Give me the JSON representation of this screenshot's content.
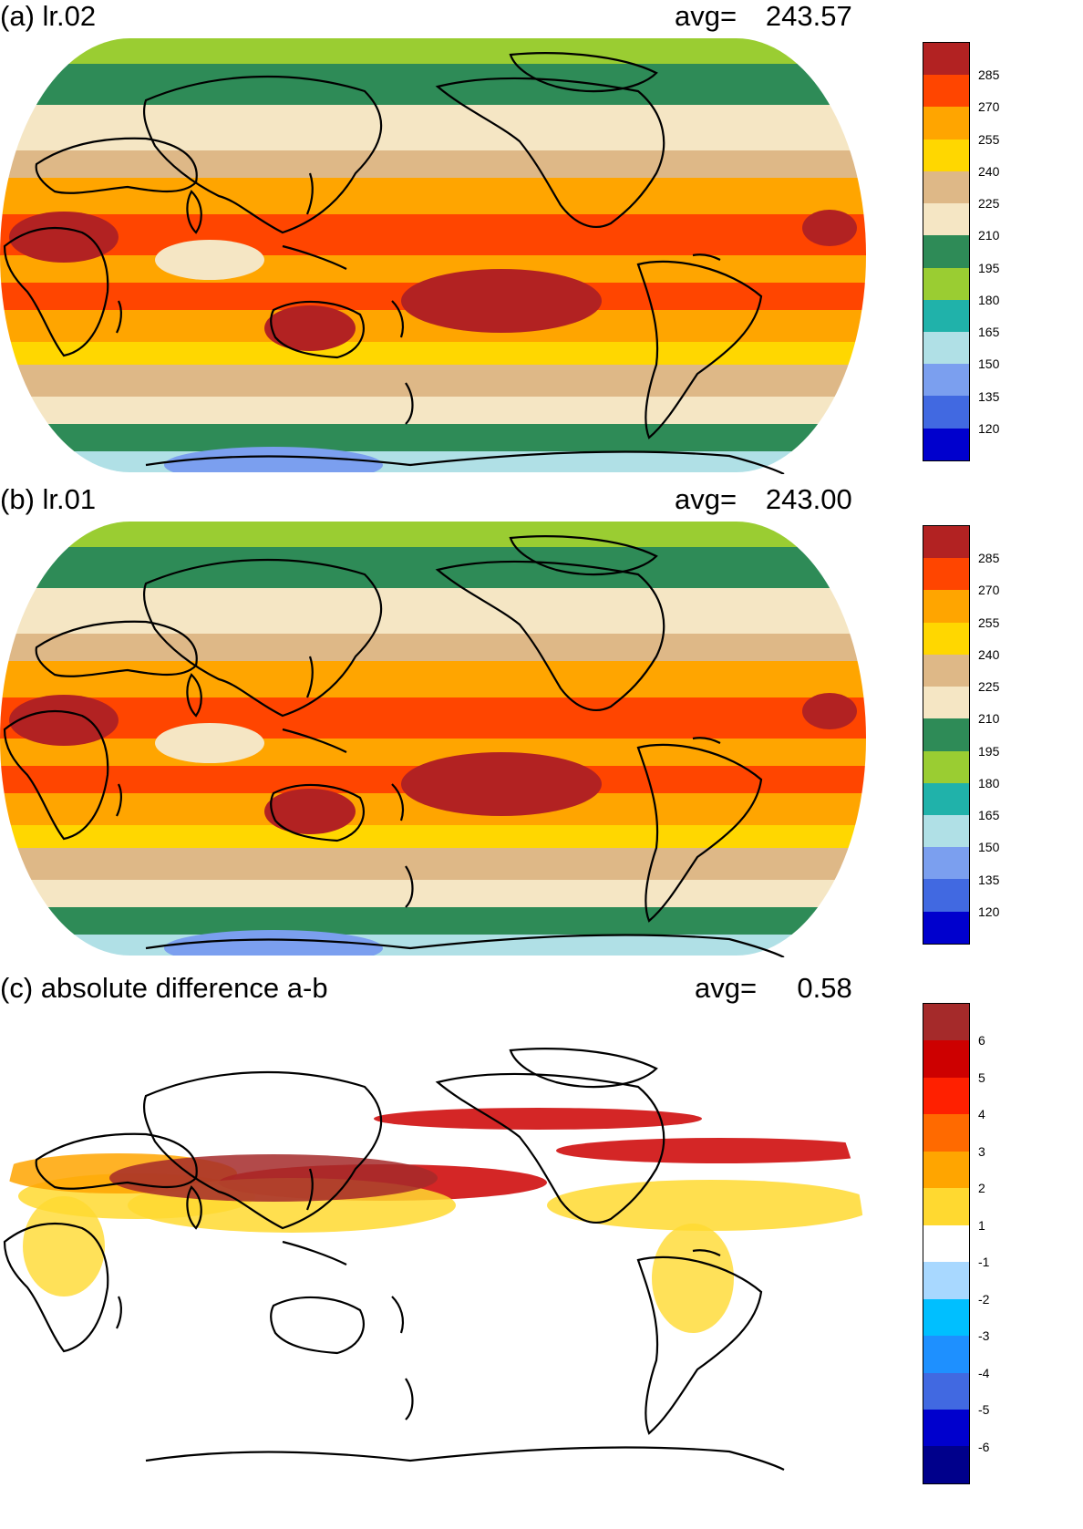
{
  "panels": [
    {
      "title": "(a) lr.02",
      "avg_label": "avg=",
      "avg_value": "243.57",
      "colorbar": {
        "labels": [
          "285",
          "270",
          "255",
          "240",
          "225",
          "210",
          "195",
          "180",
          "165",
          "150",
          "135",
          "120"
        ],
        "colors": [
          "#b22222",
          "#ff4500",
          "#ffa500",
          "#ffd700",
          "#deb887",
          "#f5e6c4",
          "#2e8b57",
          "#9acd32",
          "#20b2aa",
          "#b0e0e6",
          "#7b9fef",
          "#4169e1",
          "#0000cd"
        ]
      }
    },
    {
      "title": "(b) lr.01",
      "avg_label": "avg=",
      "avg_value": "243.00",
      "colorbar": {
        "labels": [
          "285",
          "270",
          "255",
          "240",
          "225",
          "210",
          "195",
          "180",
          "165",
          "150",
          "135",
          "120"
        ],
        "colors": [
          "#b22222",
          "#ff4500",
          "#ffa500",
          "#ffd700",
          "#deb887",
          "#f5e6c4",
          "#2e8b57",
          "#9acd32",
          "#20b2aa",
          "#b0e0e6",
          "#7b9fef",
          "#4169e1",
          "#0000cd"
        ]
      }
    },
    {
      "title": "(c) absolute difference a-b",
      "avg_label": "avg=",
      "avg_value": "0.58",
      "colorbar": {
        "labels": [
          "6",
          "5",
          "4",
          "3",
          "2",
          "1",
          "-1",
          "-2",
          "-3",
          "-4",
          "-5",
          "-6"
        ],
        "colors": [
          "#a52a2a",
          "#cd0000",
          "#ff2000",
          "#ff6a00",
          "#ffa500",
          "#ffd930",
          "#ffffff",
          "#a8d8ff",
          "#00bfff",
          "#1e90ff",
          "#4169e1",
          "#0000cd",
          "#00008b"
        ]
      }
    }
  ]
}
